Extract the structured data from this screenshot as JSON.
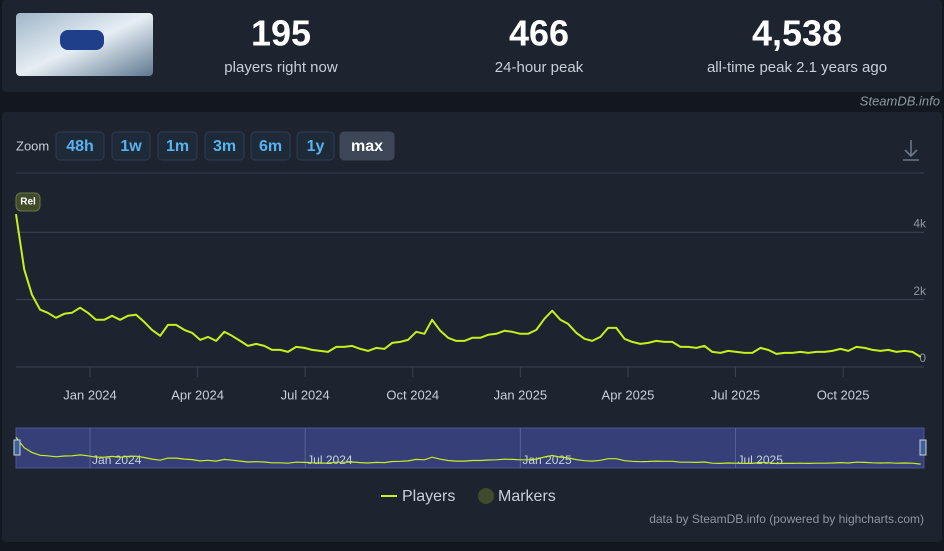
{
  "header": {
    "stats": [
      {
        "value": "195",
        "label": "players right now"
      },
      {
        "value": "466",
        "label": "24-hour peak"
      },
      {
        "value": "4,538",
        "label": "all-time peak 2.1 years ago"
      }
    ]
  },
  "watermark": "SteamDB.info",
  "zoom": {
    "label": "Zoom",
    "buttons": [
      "48h",
      "1w",
      "1m",
      "3m",
      "6m",
      "1y",
      "max"
    ],
    "active_index": 6
  },
  "chart_data": {
    "type": "line",
    "x": [
      2023.828,
      2023.847,
      2023.865,
      2023.884,
      2023.902,
      2023.921,
      2023.94,
      2023.958,
      2023.977,
      2023.995,
      2024.014,
      2024.033,
      2024.051,
      2024.07,
      2024.088,
      2024.107,
      2024.126,
      2024.144,
      2024.163,
      2024.181,
      2024.2,
      2024.219,
      2024.237,
      2024.256,
      2024.274,
      2024.293,
      2024.312,
      2024.33,
      2024.349,
      2024.367,
      2024.386,
      2024.405,
      2024.423,
      2024.442,
      2024.46,
      2024.479,
      2024.498,
      2024.516,
      2024.535,
      2024.553,
      2024.572,
      2024.591,
      2024.609,
      2024.628,
      2024.646,
      2024.665,
      2024.684,
      2024.702,
      2024.721,
      2024.739,
      2024.758,
      2024.777,
      2024.795,
      2024.814,
      2024.832,
      2024.851,
      2024.87,
      2024.888,
      2024.907,
      2024.925,
      2024.944,
      2024.963,
      2024.981,
      2025.0,
      2025.018,
      2025.037,
      2025.056,
      2025.074,
      2025.093,
      2025.111,
      2025.13,
      2025.149,
      2025.167,
      2025.186,
      2025.204,
      2025.223,
      2025.242,
      2025.26,
      2025.279,
      2025.297,
      2025.316,
      2025.335,
      2025.353,
      2025.372,
      2025.39,
      2025.409,
      2025.428,
      2025.446,
      2025.465,
      2025.483,
      2025.502,
      2025.521,
      2025.539,
      2025.558,
      2025.576,
      2025.595,
      2025.614,
      2025.632,
      2025.651,
      2025.669,
      2025.688,
      2025.707,
      2025.725,
      2025.744,
      2025.762,
      2025.781,
      2025.8,
      2025.818,
      2025.837,
      2025.855,
      2025.874,
      2025.893,
      2025.911,
      2025.93
    ],
    "series": [
      {
        "name": "Players",
        "color": "#c6f01c",
        "values": [
          4538,
          2900,
          2150,
          1700,
          1610,
          1460,
          1580,
          1610,
          1760,
          1610,
          1400,
          1400,
          1520,
          1400,
          1520,
          1550,
          1340,
          1100,
          925,
          1250,
          1250,
          1100,
          1015,
          805,
          895,
          776,
          1045,
          925,
          776,
          627,
          687,
          627,
          507,
          507,
          448,
          597,
          567,
          507,
          478,
          448,
          597,
          597,
          627,
          537,
          478,
          567,
          537,
          716,
          746,
          805,
          1045,
          985,
          1400,
          1075,
          866,
          776,
          776,
          866,
          866,
          955,
          985,
          1075,
          1045,
          985,
          985,
          1100,
          1430,
          1670,
          1400,
          1280,
          1015,
          836,
          776,
          895,
          1160,
          1160,
          836,
          746,
          687,
          716,
          776,
          746,
          746,
          597,
          597,
          567,
          627,
          448,
          418,
          478,
          448,
          418,
          418,
          567,
          507,
          388,
          418,
          418,
          448,
          418,
          448,
          448,
          478,
          537,
          478,
          597,
          567,
          507,
          478,
          507,
          448,
          478,
          448,
          300
        ]
      }
    ],
    "markers": {
      "name": "Markers",
      "color": "#3f4b2b",
      "points": [
        {
          "x": 2023.828,
          "label": "Rel"
        }
      ]
    },
    "xlim": [
      2023.828,
      2025.938
    ],
    "xticks": [
      {
        "value": 2024,
        "label": "Jan 2024"
      },
      {
        "value": 2024.25,
        "label": "Apr 2024"
      },
      {
        "value": 2024.5,
        "label": "Jul 2024"
      },
      {
        "value": 2024.75,
        "label": "Oct 2024"
      },
      {
        "value": 2025,
        "label": "Jan 2025"
      },
      {
        "value": 2025.25,
        "label": "Apr 2025"
      },
      {
        "value": 2025.5,
        "label": "Jul 2025"
      },
      {
        "value": 2025.75,
        "label": "Oct 2025"
      }
    ],
    "ylim": [
      0,
      5700
    ],
    "yticks": [
      0,
      {
        "value": 2000,
        "label": "2k"
      },
      {
        "value": 4000,
        "label": "4k"
      }
    ],
    "grid": true,
    "navigator_xticks": [
      {
        "value": 2024,
        "label": "Jan 2024"
      },
      {
        "value": 2024.5,
        "label": "Jul 2024"
      },
      {
        "value": 2025,
        "label": "Jan 2025"
      },
      {
        "value": 2025.5,
        "label": "Jul 2025"
      }
    ]
  },
  "credits": "data by SteamDB.info (powered by highcharts.com)"
}
